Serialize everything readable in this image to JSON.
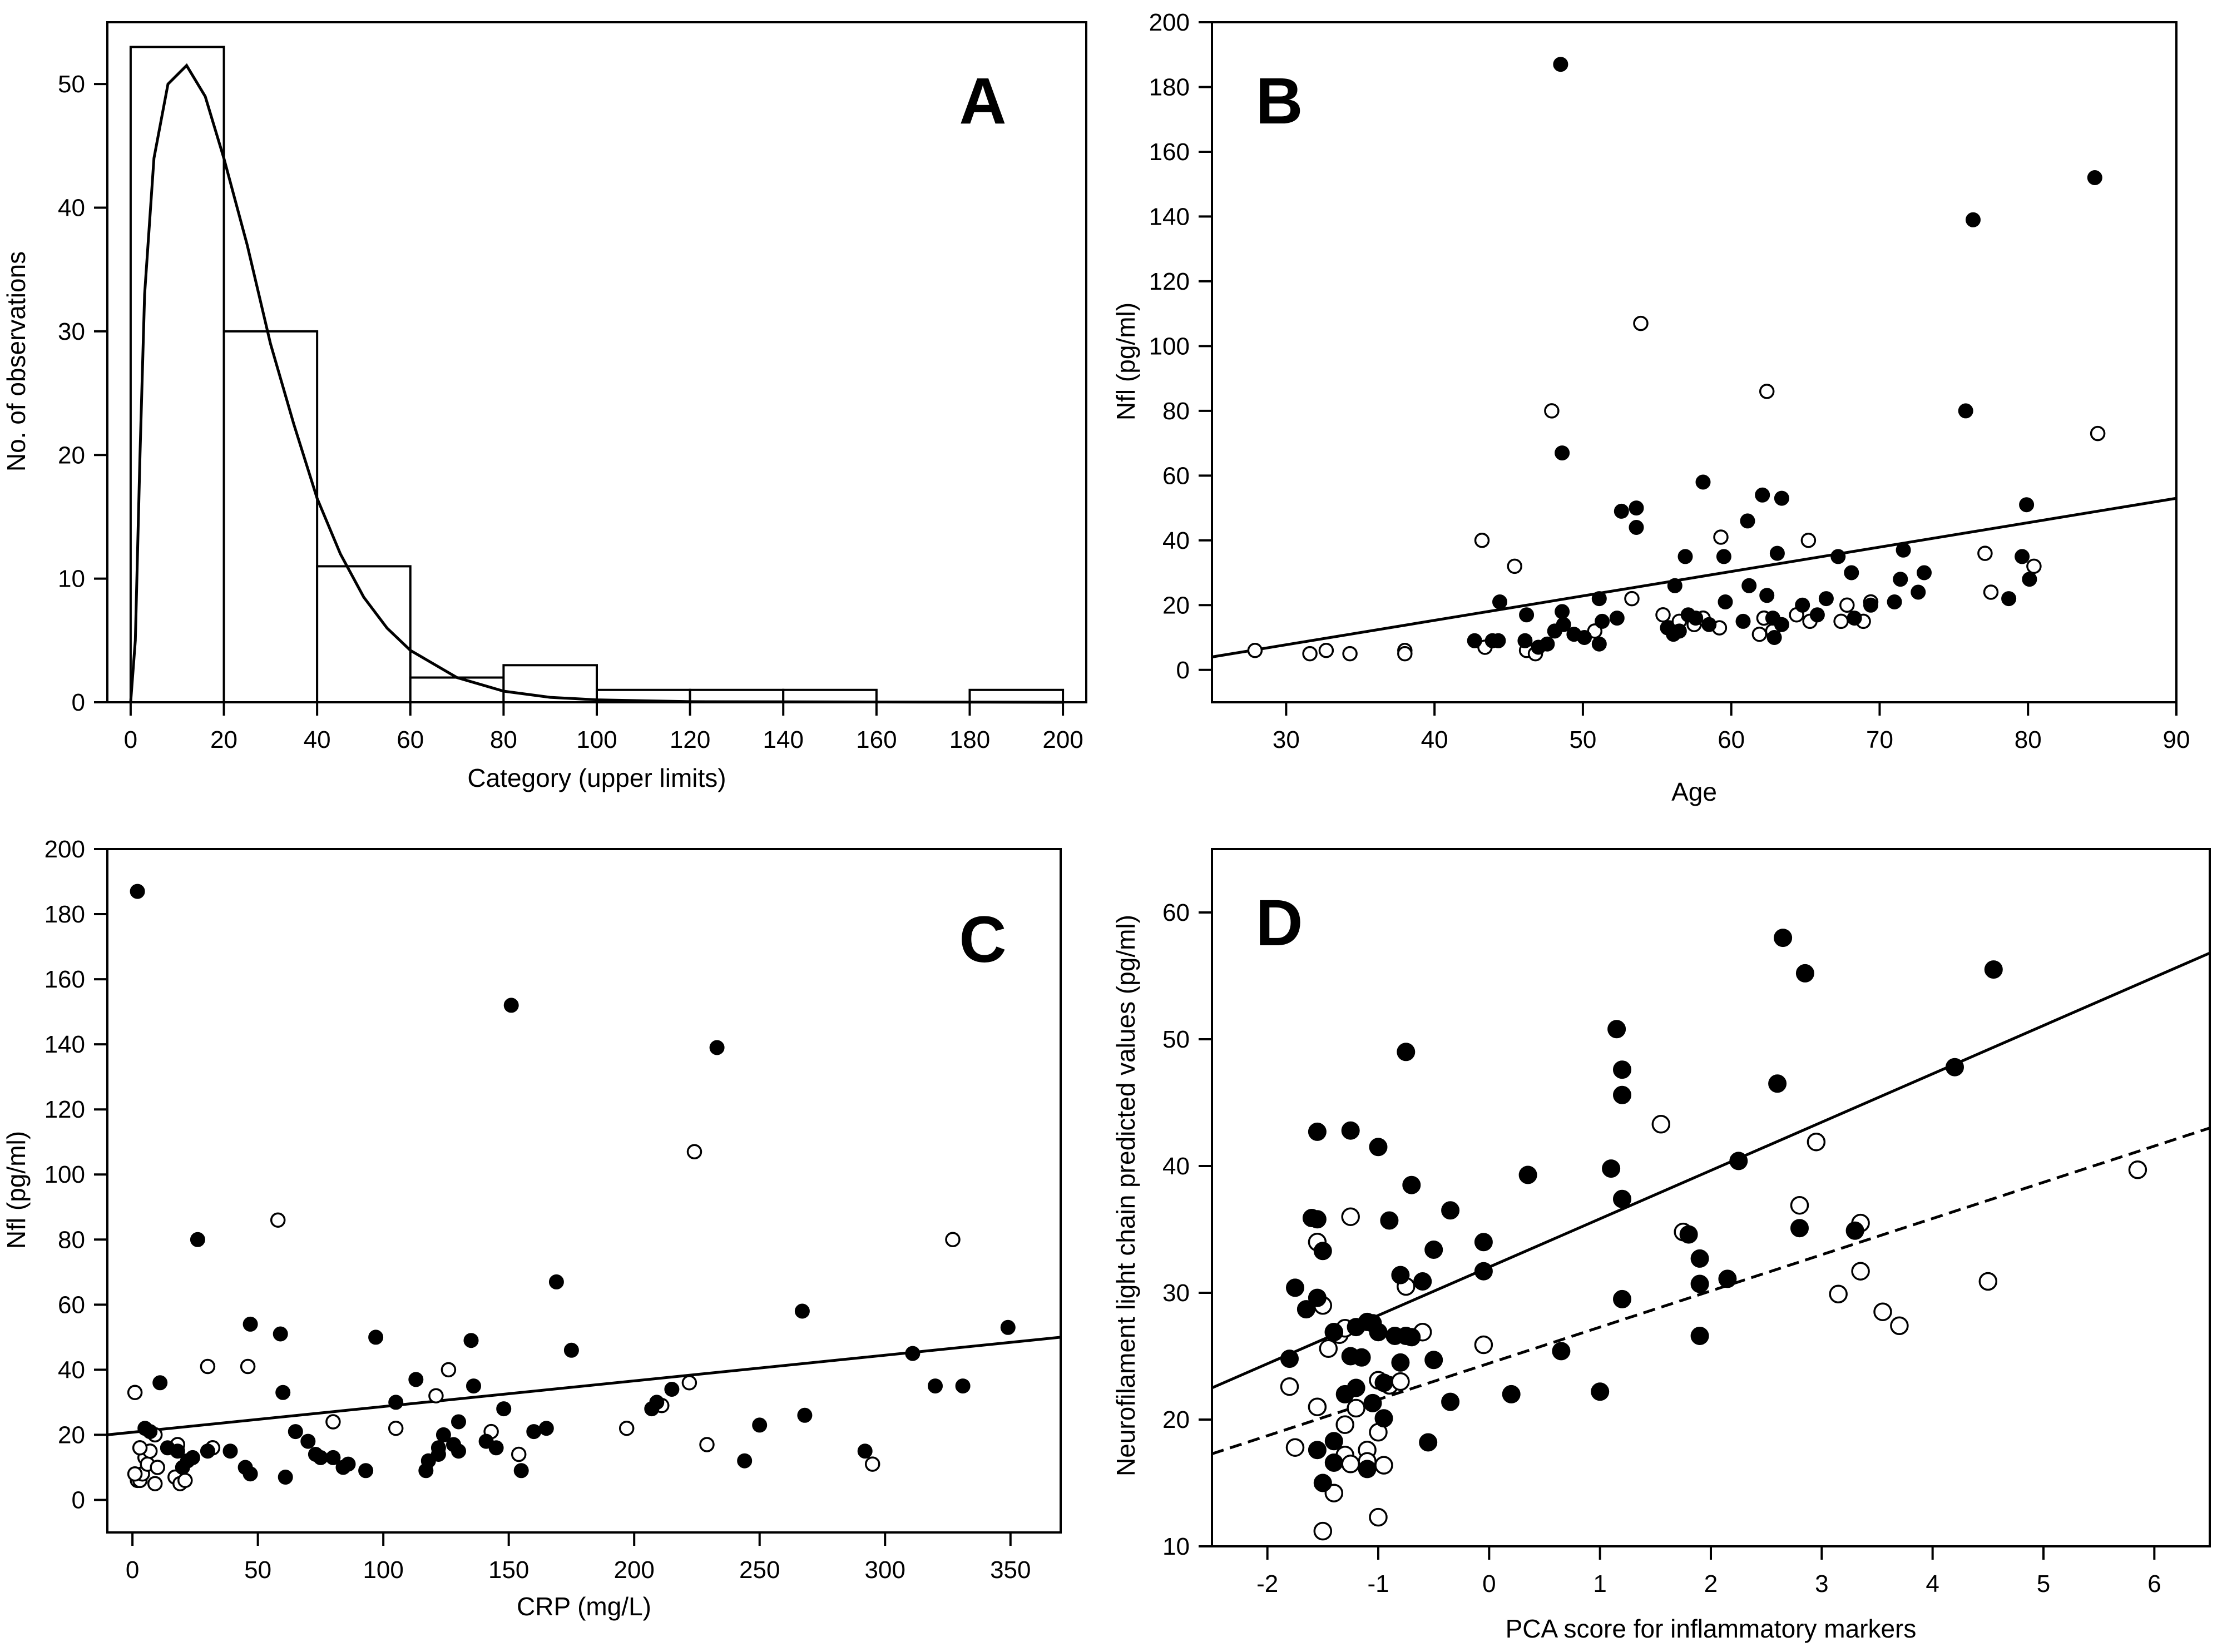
{
  "chart_data": [
    {
      "panel": "A",
      "type": "bar",
      "xlabel": "Category (upper limits)",
      "ylabel": "No. of observations",
      "xlim": [
        -5,
        205
      ],
      "ylim": [
        0,
        55
      ],
      "xticks": [
        0,
        20,
        40,
        60,
        80,
        100,
        120,
        140,
        160,
        180,
        200
      ],
      "yticks": [
        0,
        10,
        20,
        30,
        40,
        50
      ],
      "bins": [
        {
          "lo": 0,
          "hi": 20,
          "count": 53
        },
        {
          "lo": 20,
          "hi": 40,
          "count": 30
        },
        {
          "lo": 40,
          "hi": 60,
          "count": 11
        },
        {
          "lo": 60,
          "hi": 80,
          "count": 2
        },
        {
          "lo": 80,
          "hi": 100,
          "count": 3
        },
        {
          "lo": 100,
          "hi": 120,
          "count": 1
        },
        {
          "lo": 120,
          "hi": 140,
          "count": 1
        },
        {
          "lo": 140,
          "hi": 160,
          "count": 1
        },
        {
          "lo": 160,
          "hi": 180,
          "count": 0
        },
        {
          "lo": 180,
          "hi": 200,
          "count": 1
        }
      ],
      "fitted_curve": "gamma",
      "curve": [
        [
          0,
          0
        ],
        [
          1,
          5
        ],
        [
          2,
          20
        ],
        [
          3,
          33
        ],
        [
          5,
          44
        ],
        [
          8,
          50
        ],
        [
          12,
          51.5
        ],
        [
          16,
          49
        ],
        [
          20,
          44
        ],
        [
          25,
          37
        ],
        [
          30,
          29
        ],
        [
          35,
          22.5
        ],
        [
          40,
          16.5
        ],
        [
          45,
          12
        ],
        [
          50,
          8.5
        ],
        [
          55,
          6
        ],
        [
          60,
          4.2
        ],
        [
          70,
          2
        ],
        [
          80,
          0.9
        ],
        [
          90,
          0.4
        ],
        [
          100,
          0.2
        ],
        [
          120,
          0.05
        ],
        [
          200,
          0
        ]
      ]
    },
    {
      "panel": "B",
      "type": "scatter",
      "xlabel": "Age",
      "ylabel": "Nfl (pg/ml)",
      "xlim": [
        25,
        90
      ],
      "ylim": [
        -10,
        200
      ],
      "xticks": [
        30,
        40,
        50,
        60,
        70,
        80,
        90
      ],
      "yticks": [
        0,
        20,
        40,
        60,
        80,
        100,
        120,
        140,
        160,
        180,
        200
      ],
      "filled": [
        [
          48.5,
          187
        ],
        [
          84.5,
          152
        ],
        [
          76.3,
          139
        ],
        [
          75.8,
          80
        ],
        [
          48.6,
          67
        ],
        [
          58.1,
          58
        ],
        [
          62.1,
          54
        ],
        [
          63.4,
          53
        ],
        [
          52.6,
          49
        ],
        [
          53.6,
          50
        ],
        [
          53.6,
          44
        ],
        [
          79.9,
          51
        ],
        [
          61.1,
          46
        ],
        [
          56.9,
          35
        ],
        [
          59.5,
          35
        ],
        [
          63.1,
          36
        ],
        [
          67.2,
          35
        ],
        [
          71.6,
          37
        ],
        [
          62.4,
          23
        ],
        [
          73,
          30
        ],
        [
          56.2,
          26
        ],
        [
          61.2,
          26
        ],
        [
          68.1,
          30
        ],
        [
          71.4,
          28
        ],
        [
          79.6,
          35
        ],
        [
          80.1,
          28
        ],
        [
          78.7,
          22
        ],
        [
          72.6,
          24
        ],
        [
          71,
          21
        ],
        [
          44.4,
          21
        ],
        [
          46.2,
          17
        ],
        [
          48.6,
          18
        ],
        [
          51.1,
          22
        ],
        [
          51.3,
          15
        ],
        [
          52.3,
          16
        ],
        [
          49.4,
          11
        ],
        [
          50.1,
          10
        ],
        [
          48.1,
          12
        ],
        [
          48.7,
          14
        ],
        [
          47.6,
          8
        ],
        [
          46.1,
          9
        ],
        [
          44.3,
          9
        ],
        [
          43.9,
          9
        ],
        [
          42.7,
          9
        ],
        [
          47,
          7
        ],
        [
          51.1,
          8
        ],
        [
          55.7,
          13
        ],
        [
          56.5,
          12
        ],
        [
          57.1,
          17
        ],
        [
          58.5,
          14
        ],
        [
          60.8,
          15
        ],
        [
          62.9,
          10
        ],
        [
          63.4,
          14
        ],
        [
          64.8,
          20
        ],
        [
          65.8,
          17
        ],
        [
          66.4,
          22
        ],
        [
          68.3,
          16
        ],
        [
          69.4,
          20
        ],
        [
          56.1,
          11
        ],
        [
          57.6,
          16
        ],
        [
          59.6,
          21
        ],
        [
          62.8,
          16
        ]
      ],
      "open": [
        [
          27.9,
          6
        ],
        [
          31.6,
          5
        ],
        [
          32.7,
          6
        ],
        [
          34.3,
          5
        ],
        [
          38,
          6
        ],
        [
          38,
          5
        ],
        [
          43.2,
          40
        ],
        [
          45.4,
          32
        ],
        [
          43.4,
          7
        ],
        [
          46.2,
          6
        ],
        [
          46.8,
          5
        ],
        [
          47.9,
          80
        ],
        [
          53.9,
          107
        ],
        [
          62.4,
          86
        ],
        [
          53.3,
          22
        ],
        [
          59.3,
          41
        ],
        [
          65.2,
          40
        ],
        [
          50.8,
          12
        ],
        [
          55.4,
          17
        ],
        [
          55.8,
          13
        ],
        [
          57.5,
          14
        ],
        [
          56.5,
          15
        ],
        [
          58.1,
          16
        ],
        [
          59.2,
          13
        ],
        [
          61.9,
          11
        ],
        [
          62.8,
          12
        ],
        [
          62.2,
          16
        ],
        [
          64.4,
          17
        ],
        [
          65.3,
          15
        ],
        [
          67.4,
          15
        ],
        [
          67.8,
          20
        ],
        [
          68.9,
          15
        ],
        [
          69.4,
          21
        ],
        [
          77.1,
          36
        ],
        [
          77.5,
          24
        ],
        [
          80.4,
          32
        ],
        [
          84.7,
          73
        ]
      ],
      "fit_line": [
        [
          25,
          4
        ],
        [
          90,
          53
        ]
      ]
    },
    {
      "panel": "C",
      "type": "scatter",
      "xlabel": "CRP (mg/L)",
      "ylabel": "Nfl (pg/ml)",
      "xlim": [
        -10,
        370
      ],
      "ylim": [
        -10,
        200
      ],
      "xticks": [
        0,
        50,
        100,
        150,
        200,
        250,
        300,
        350
      ],
      "yticks": [
        0,
        20,
        40,
        60,
        80,
        100,
        120,
        140,
        160,
        180,
        200
      ],
      "filled": [
        [
          2,
          187
        ],
        [
          151,
          152
        ],
        [
          233,
          139
        ],
        [
          26,
          80
        ],
        [
          169,
          67
        ],
        [
          267,
          58
        ],
        [
          47,
          54
        ],
        [
          59,
          51
        ],
        [
          349,
          53
        ],
        [
          97,
          50
        ],
        [
          135,
          49
        ],
        [
          175,
          46
        ],
        [
          311,
          45
        ],
        [
          11,
          36
        ],
        [
          113,
          37
        ],
        [
          320,
          35
        ],
        [
          331,
          35
        ],
        [
          136,
          35
        ],
        [
          60,
          33
        ],
        [
          215,
          34
        ],
        [
          207,
          28
        ],
        [
          209,
          30
        ],
        [
          268,
          26
        ],
        [
          148,
          28
        ],
        [
          105,
          30
        ],
        [
          250,
          23
        ],
        [
          30,
          15
        ],
        [
          24,
          13
        ],
        [
          20,
          10
        ],
        [
          22,
          12
        ],
        [
          65,
          21
        ],
        [
          70,
          18
        ],
        [
          73,
          14
        ],
        [
          75,
          13
        ],
        [
          80,
          13
        ],
        [
          84,
          10
        ],
        [
          86,
          11
        ],
        [
          93,
          9
        ],
        [
          117,
          9
        ],
        [
          118,
          12
        ],
        [
          122,
          16
        ],
        [
          124,
          20
        ],
        [
          128,
          17
        ],
        [
          130,
          24
        ],
        [
          141,
          18
        ],
        [
          145,
          16
        ],
        [
          160,
          21
        ],
        [
          165,
          22
        ],
        [
          155,
          9
        ],
        [
          244,
          12
        ],
        [
          292,
          15
        ],
        [
          45,
          10
        ],
        [
          47,
          8
        ],
        [
          39,
          15
        ],
        [
          5,
          22
        ],
        [
          7,
          21
        ],
        [
          14,
          16
        ],
        [
          18,
          15
        ],
        [
          61,
          7
        ],
        [
          122,
          14
        ],
        [
          130,
          15
        ]
      ],
      "open": [
        [
          1,
          33
        ],
        [
          2,
          6
        ],
        [
          3,
          6
        ],
        [
          4,
          8
        ],
        [
          5,
          13
        ],
        [
          6,
          11
        ],
        [
          7,
          15
        ],
        [
          9,
          20
        ],
        [
          10,
          10
        ],
        [
          3,
          16
        ],
        [
          18,
          17
        ],
        [
          30,
          41
        ],
        [
          46,
          41
        ],
        [
          58,
          86
        ],
        [
          80,
          24
        ],
        [
          105,
          22
        ],
        [
          121,
          32
        ],
        [
          126,
          40
        ],
        [
          143,
          21
        ],
        [
          154,
          14
        ],
        [
          197,
          22
        ],
        [
          211,
          29
        ],
        [
          222,
          36
        ],
        [
          224,
          107
        ],
        [
          229,
          17
        ],
        [
          295,
          11
        ],
        [
          327,
          80
        ],
        [
          17,
          7
        ],
        [
          19,
          5
        ],
        [
          21,
          6
        ],
        [
          9,
          5
        ],
        [
          1,
          8
        ],
        [
          32,
          16
        ]
      ],
      "fit_line": [
        [
          -10,
          20
        ],
        [
          370,
          50
        ]
      ]
    },
    {
      "panel": "D",
      "type": "scatter",
      "xlabel": "PCA score for inflammatory markers",
      "ylabel": "Neurofilament light chain predicted values (pg/ml)",
      "xlim": [
        -2.5,
        6.5
      ],
      "ylim": [
        10,
        65
      ],
      "xticks": [
        -2,
        -1,
        0,
        1,
        2,
        3,
        4,
        5,
        6
      ],
      "yticks": [
        10,
        20,
        30,
        40,
        50,
        60
      ],
      "filled": [
        [
          2.65,
          58
        ],
        [
          2.85,
          55.2
        ],
        [
          4.55,
          55.5
        ],
        [
          1.15,
          50.8
        ],
        [
          1.2,
          47.6
        ],
        [
          1.2,
          45.6
        ],
        [
          2.6,
          46.5
        ],
        [
          4.2,
          47.8
        ],
        [
          -0.75,
          49
        ],
        [
          -1.55,
          42.7
        ],
        [
          -1.25,
          42.8
        ],
        [
          -1.0,
          41.5
        ],
        [
          -0.7,
          38.5
        ],
        [
          1.1,
          39.8
        ],
        [
          0.35,
          39.3
        ],
        [
          1.2,
          37.4
        ],
        [
          2.25,
          40.4
        ],
        [
          -1.6,
          35.9
        ],
        [
          -1.55,
          35.8
        ],
        [
          -0.9,
          35.7
        ],
        [
          -0.35,
          36.5
        ],
        [
          -0.05,
          34
        ],
        [
          -0.5,
          33.4
        ],
        [
          1.8,
          34.6
        ],
        [
          3.3,
          34.9
        ],
        [
          2.8,
          35.1
        ],
        [
          -1.75,
          30.4
        ],
        [
          -1.55,
          29.6
        ],
        [
          -0.8,
          31.4
        ],
        [
          -0.6,
          30.9
        ],
        [
          -0.05,
          31.7
        ],
        [
          1.2,
          29.5
        ],
        [
          1.9,
          32.7
        ],
        [
          1.9,
          30.7
        ],
        [
          2.15,
          31.1
        ],
        [
          -1.65,
          28.7
        ],
        [
          -1.5,
          33.3
        ],
        [
          -1.4,
          26.9
        ],
        [
          -1.2,
          27.3
        ],
        [
          -1.1,
          27.7
        ],
        [
          -1.05,
          27.6
        ],
        [
          -1.0,
          26.9
        ],
        [
          -0.85,
          26.6
        ],
        [
          -0.75,
          26.6
        ],
        [
          -0.7,
          26.5
        ],
        [
          -1.25,
          25
        ],
        [
          -1.8,
          24.8
        ],
        [
          -1.15,
          24.9
        ],
        [
          -0.8,
          24.5
        ],
        [
          -0.5,
          24.7
        ],
        [
          -0.95,
          22.9
        ],
        [
          0.65,
          25.4
        ],
        [
          -1.2,
          22.5
        ],
        [
          -1.3,
          22
        ],
        [
          -1.05,
          21.3
        ],
        [
          -0.35,
          21.4
        ],
        [
          0.2,
          22
        ],
        [
          1.0,
          22.2
        ],
        [
          -0.95,
          20.1
        ],
        [
          1.9,
          26.6
        ],
        [
          -1.4,
          18.3
        ],
        [
          -1.5,
          15
        ],
        [
          -1.4,
          16.6
        ],
        [
          -1.1,
          16.1
        ],
        [
          -0.55,
          18.2
        ],
        [
          -1.55,
          17.6
        ]
      ],
      "open": [
        [
          -1.55,
          34
        ],
        [
          -1.25,
          36
        ],
        [
          -1.35,
          26.7
        ],
        [
          -1.5,
          29
        ],
        [
          -1.3,
          27.2
        ],
        [
          -1.45,
          25.6
        ],
        [
          -1.4,
          26.9
        ],
        [
          -0.75,
          30.5
        ],
        [
          -0.6,
          26.9
        ],
        [
          -0.05,
          25.9
        ],
        [
          -1.8,
          22.6
        ],
        [
          -1.55,
          21
        ],
        [
          -1.3,
          19.6
        ],
        [
          -1.2,
          20.9
        ],
        [
          -1.0,
          23.1
        ],
        [
          -0.9,
          22.7
        ],
        [
          -0.8,
          23
        ],
        [
          -1.0,
          19
        ],
        [
          -1.1,
          17.6
        ],
        [
          -1.3,
          17.2
        ],
        [
          -1.25,
          16.5
        ],
        [
          -1.4,
          14.2
        ],
        [
          -1.5,
          11.2
        ],
        [
          -1.0,
          12.3
        ],
        [
          -1.75,
          17.8
        ],
        [
          -1.1,
          16.7
        ],
        [
          -0.95,
          16.4
        ],
        [
          1.55,
          43.3
        ],
        [
          1.75,
          34.8
        ],
        [
          2.8,
          36.9
        ],
        [
          2.95,
          41.9
        ],
        [
          3.15,
          29.9
        ],
        [
          3.35,
          31.7
        ],
        [
          3.35,
          35.5
        ],
        [
          3.55,
          28.5
        ],
        [
          3.7,
          27.4
        ],
        [
          4.5,
          30.9
        ],
        [
          5.85,
          39.7
        ]
      ],
      "fit_line": [
        [
          -2.5,
          22.5
        ],
        [
          6.5,
          56.8
        ]
      ],
      "fit_line_dashed": [
        [
          -2.5,
          17.3
        ],
        [
          6.5,
          43
        ]
      ]
    }
  ],
  "labels": {
    "panel_a": "A",
    "panel_b": "B",
    "panel_c": "C",
    "panel_d": "D"
  }
}
